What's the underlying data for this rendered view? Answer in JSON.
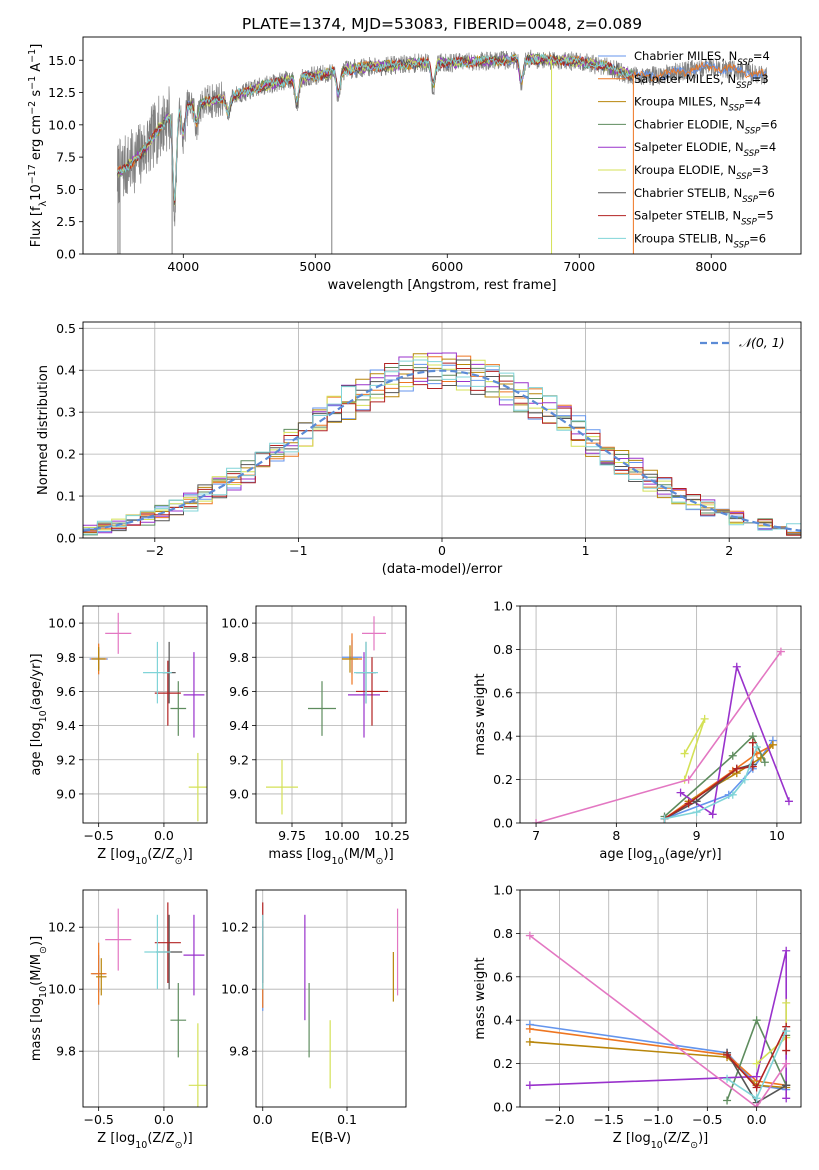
{
  "figure": {
    "title": "PLATE=1374, MJD=53083, FIBERID=0048, z=0.089",
    "background": "#ffffff",
    "grid_color": "#b0b0b0"
  },
  "models": [
    {
      "name": "Chabrier MILES",
      "nssp": "4",
      "color": "#6495ed"
    },
    {
      "name": "Salpeter MILES",
      "nssp": "3",
      "color": "#ee7621"
    },
    {
      "name": "Kroupa MILES",
      "nssp": "4",
      "color": "#b8860b"
    },
    {
      "name": "Chabrier ELODIE",
      "nssp": "6",
      "color": "#5e8c5e"
    },
    {
      "name": "Salpeter ELODIE",
      "nssp": "4",
      "color": "#9932cc"
    },
    {
      "name": "Kroupa ELODIE",
      "nssp": "3",
      "color": "#d4e157"
    },
    {
      "name": "Chabrier STELIB",
      "nssp": "6",
      "color": "#555555"
    },
    {
      "name": "Salpeter STELIB",
      "nssp": "5",
      "color": "#b22222"
    },
    {
      "name": "Kroupa STELIB",
      "nssp": "6",
      "color": "#80d4d8"
    }
  ],
  "chart_data": [
    {
      "id": "spectrum",
      "type": "line",
      "xlabel": "wavelength [Angstrom, rest frame]",
      "ylabel": "Flux [f_λ10^-17 erg cm^-2 s^-1 A^-1]",
      "xlim": [
        3240,
        8680
      ],
      "ylim": [
        0,
        16.8
      ],
      "xticks": [
        4000,
        5000,
        6000,
        7000,
        8000
      ],
      "yticks": [
        0.0,
        2.5,
        5.0,
        7.5,
        10.0,
        12.5,
        15.0
      ],
      "grid": false,
      "legend_position": "right",
      "data_color": "#808080",
      "continuum": [
        {
          "x": 3500,
          "y": 6.2
        },
        {
          "x": 3600,
          "y": 7.0
        },
        {
          "x": 3700,
          "y": 8.0
        },
        {
          "x": 3800,
          "y": 9.5
        },
        {
          "x": 3900,
          "y": 10.8
        },
        {
          "x": 4000,
          "y": 11.5
        },
        {
          "x": 4200,
          "y": 11.8
        },
        {
          "x": 4400,
          "y": 12.3
        },
        {
          "x": 4600,
          "y": 13.0
        },
        {
          "x": 4800,
          "y": 13.5
        },
        {
          "x": 5000,
          "y": 13.8
        },
        {
          "x": 5200,
          "y": 14.2
        },
        {
          "x": 5400,
          "y": 14.5
        },
        {
          "x": 5600,
          "y": 14.6
        },
        {
          "x": 5800,
          "y": 14.8
        },
        {
          "x": 6000,
          "y": 14.8
        },
        {
          "x": 6200,
          "y": 14.9
        },
        {
          "x": 6400,
          "y": 15.0
        },
        {
          "x": 6600,
          "y": 15.1
        },
        {
          "x": 6800,
          "y": 15.0
        },
        {
          "x": 7000,
          "y": 14.9
        },
        {
          "x": 7200,
          "y": 14.5
        },
        {
          "x": 7400,
          "y": 13.8
        },
        {
          "x": 7600,
          "y": 13.8
        },
        {
          "x": 7800,
          "y": 14.2
        },
        {
          "x": 8000,
          "y": 14.5
        },
        {
          "x": 8200,
          "y": 14.2
        },
        {
          "x": 8420,
          "y": 13.8
        }
      ],
      "absorption_dips": [
        {
          "x": 3934,
          "y": 3.4
        },
        {
          "x": 4000,
          "y": 9.0
        },
        {
          "x": 4100,
          "y": 10.0
        },
        {
          "x": 4340,
          "y": 10.8
        },
        {
          "x": 4861,
          "y": 11.5
        },
        {
          "x": 5175,
          "y": 12.2
        },
        {
          "x": 5893,
          "y": 12.8
        },
        {
          "x": 6563,
          "y": 13.2
        }
      ],
      "spikes": [
        {
          "x": 3505,
          "y": 0.0
        },
        {
          "x": 3520,
          "y": 0.0
        },
        {
          "x": 3915,
          "y": 0.0
        },
        {
          "x": 5125,
          "y": 0.0
        },
        {
          "x": 6790,
          "y": 0.0
        },
        {
          "x": 7410,
          "y": 0.0
        }
      ]
    },
    {
      "id": "residuals",
      "type": "step",
      "xlabel": "(data-model)/error",
      "ylabel": "Normed distribution",
      "xlim": [
        -2.5,
        2.5
      ],
      "ylim": [
        0,
        0.515
      ],
      "xticks": [
        -2,
        -1,
        0,
        1,
        2
      ],
      "yticks": [
        0.0,
        0.1,
        0.2,
        0.3,
        0.4,
        0.5
      ],
      "grid": true,
      "legend": "𝒩(0, 1)",
      "legend_position": "top-right",
      "bin_width": 0.1,
      "curve_color": "#5b8bd6"
    },
    {
      "id": "z-age",
      "type": "errorbar",
      "xlabel": "Z [log10(Z/Z⊙)]",
      "ylabel": "age  [log10(age/yr)]",
      "xlim": [
        -0.62,
        0.33
      ],
      "ylim": [
        8.83,
        10.1
      ],
      "xticks": [
        -0.5,
        0.0
      ],
      "yticks": [
        9.0,
        9.2,
        9.4,
        9.6,
        9.8,
        10.0
      ],
      "grid": true,
      "points": [
        {
          "series": 0,
          "x": -0.5,
          "y": 9.79,
          "ex": 0.07,
          "ey": 0.06
        },
        {
          "series": 1,
          "x": -0.5,
          "y": 9.79,
          "ex": 0.06,
          "ey": 0.09
        },
        {
          "series": 2,
          "x": -0.5,
          "y": 9.79,
          "ex": 0.05,
          "ey": 0.07
        },
        {
          "series": 3,
          "x": 0.11,
          "y": 9.5,
          "ex": 0.06,
          "ey": 0.16
        },
        {
          "series": 4,
          "x": 0.23,
          "y": 9.58,
          "ex": 0.08,
          "ey": 0.25
        },
        {
          "series": 5,
          "x": 0.26,
          "y": 9.04,
          "ex": 0.07,
          "ey": 0.2
        },
        {
          "series": 6,
          "x": 0.04,
          "y": 9.71,
          "ex": 0.05,
          "ey": 0.18
        },
        {
          "series": 7,
          "x": 0.03,
          "y": 9.59,
          "ex": 0.1,
          "ey": 0.19
        },
        {
          "series": 8,
          "x": -0.05,
          "y": 9.71,
          "ex": 0.11,
          "ey": 0.18
        },
        {
          "series": 9,
          "x": -0.35,
          "y": 9.94,
          "ex": 0.1,
          "ey": 0.12
        }
      ]
    },
    {
      "id": "mass-age",
      "type": "errorbar",
      "xlabel": "mass [log10(M/M⊙)]",
      "ylabel": "",
      "xlim": [
        9.57,
        10.32
      ],
      "ylim": [
        8.83,
        10.1
      ],
      "xticks": [
        9.75,
        10.0,
        10.25
      ],
      "yticks": [
        9.0,
        9.2,
        9.4,
        9.6,
        9.8,
        10.0
      ],
      "grid": true,
      "points": [
        {
          "series": 0,
          "x": 10.05,
          "y": 9.8,
          "ex": 0.05,
          "ey": 0.1
        },
        {
          "series": 1,
          "x": 10.05,
          "y": 9.79,
          "ex": 0.05,
          "ey": 0.15
        },
        {
          "series": 2,
          "x": 10.04,
          "y": 9.79,
          "ex": 0.04,
          "ey": 0.08
        },
        {
          "series": 3,
          "x": 9.9,
          "y": 9.5,
          "ex": 0.07,
          "ey": 0.16
        },
        {
          "series": 4,
          "x": 10.11,
          "y": 9.58,
          "ex": 0.08,
          "ey": 0.25
        },
        {
          "series": 5,
          "x": 9.7,
          "y": 9.04,
          "ex": 0.08,
          "ey": 0.16
        },
        {
          "series": 6,
          "x": 10.12,
          "y": 9.71,
          "ex": 0.05,
          "ey": 0.18
        },
        {
          "series": 7,
          "x": 10.15,
          "y": 9.6,
          "ex": 0.08,
          "ey": 0.2
        },
        {
          "series": 8,
          "x": 10.12,
          "y": 9.71,
          "ex": 0.06,
          "ey": 0.18
        },
        {
          "series": 9,
          "x": 10.16,
          "y": 9.94,
          "ex": 0.06,
          "ey": 0.1
        }
      ]
    },
    {
      "id": "age-weight",
      "type": "line",
      "xlabel": "age  [log10(age/yr)]",
      "ylabel": "mass weight",
      "xlim": [
        6.8,
        10.3
      ],
      "ylim": [
        0,
        1.0
      ],
      "xticks": [
        7,
        8,
        9,
        10
      ],
      "yticks": [
        0.0,
        0.2,
        0.4,
        0.6,
        0.8,
        1.0
      ],
      "grid": true,
      "series": [
        {
          "series": 0,
          "x": [
            8.6,
            9.4,
            9.7,
            9.95
          ],
          "y": [
            0.02,
            0.13,
            0.25,
            0.38
          ]
        },
        {
          "series": 1,
          "x": [
            8.6,
            9.45,
            9.75,
            9.95
          ],
          "y": [
            0.02,
            0.24,
            0.32,
            0.36
          ]
        },
        {
          "series": 2,
          "x": [
            8.9,
            9.5,
            9.8,
            9.95
          ],
          "y": [
            0.1,
            0.23,
            0.3,
            0.36
          ]
        },
        {
          "series": 3,
          "x": [
            8.6,
            9.45,
            9.7,
            9.85
          ],
          "y": [
            0.03,
            0.31,
            0.4,
            0.28
          ]
        },
        {
          "series": 4,
          "x": [
            8.8,
            9.2,
            9.5,
            10.15
          ],
          "y": [
            0.14,
            0.04,
            0.72,
            0.1
          ]
        },
        {
          "series": 5,
          "x": [
            8.85,
            9.1,
            8.85
          ],
          "y": [
            0.2,
            0.48,
            0.32
          ]
        },
        {
          "series": 6,
          "x": [
            8.6,
            9.0,
            9.5,
            9.7
          ],
          "y": [
            0.02,
            0.1,
            0.25,
            0.27
          ]
        },
        {
          "series": 7,
          "x": [
            8.6,
            8.9,
            9.5,
            9.7,
            9.7
          ],
          "y": [
            0.02,
            0.09,
            0.25,
            0.26,
            0.37
          ]
        },
        {
          "series": 8,
          "x": [
            8.6,
            9.0,
            9.45,
            9.6,
            9.75
          ],
          "y": [
            0.02,
            0.05,
            0.13,
            0.2,
            0.35
          ]
        },
        {
          "series": 9,
          "x": [
            7.0,
            8.9,
            10.05
          ],
          "y": [
            0.0,
            0.2,
            0.79
          ]
        }
      ]
    },
    {
      "id": "z-mass",
      "type": "errorbar",
      "xlabel": "Z [log10(Z/Z⊙)]",
      "ylabel": "mass [log10(M/M⊙)]",
      "xlim": [
        -0.62,
        0.33
      ],
      "ylim": [
        9.62,
        10.32
      ],
      "xticks": [
        -0.5,
        0.0
      ],
      "yticks": [
        9.8,
        10.0,
        10.2
      ],
      "grid": true,
      "points": [
        {
          "series": 0,
          "x": -0.5,
          "y": 10.05,
          "ex": 0.05,
          "ey": 0.06
        },
        {
          "series": 1,
          "x": -0.5,
          "y": 10.05,
          "ex": 0.06,
          "ey": 0.1
        },
        {
          "series": 2,
          "x": -0.48,
          "y": 10.04,
          "ex": 0.04,
          "ey": 0.06
        },
        {
          "series": 3,
          "x": 0.11,
          "y": 9.9,
          "ex": 0.06,
          "ey": 0.12
        },
        {
          "series": 4,
          "x": 0.23,
          "y": 10.11,
          "ex": 0.08,
          "ey": 0.13
        },
        {
          "series": 5,
          "x": 0.26,
          "y": 9.69,
          "ex": 0.07,
          "ey": 0.2
        },
        {
          "series": 6,
          "x": 0.04,
          "y": 10.12,
          "ex": 0.1,
          "ey": 0.12
        },
        {
          "series": 7,
          "x": 0.03,
          "y": 10.15,
          "ex": 0.1,
          "ey": 0.13
        },
        {
          "series": 8,
          "x": -0.05,
          "y": 10.12,
          "ex": 0.1,
          "ey": 0.12
        },
        {
          "series": 9,
          "x": -0.35,
          "y": 10.16,
          "ex": 0.1,
          "ey": 0.1
        }
      ]
    },
    {
      "id": "ebv-mass",
      "type": "errorbar",
      "xlabel": "E(B-V)",
      "ylabel": "",
      "xlim": [
        -0.008,
        0.17
      ],
      "ylim": [
        9.62,
        10.32
      ],
      "xticks": [
        0.0,
        0.1
      ],
      "yticks": [
        9.8,
        10.0,
        10.2
      ],
      "grid": true,
      "points": [
        {
          "series": 0,
          "x": 0.0,
          "y": 10.05,
          "ex": 0.0,
          "ey": 0.12
        },
        {
          "series": 1,
          "x": 0.0,
          "y": 10.04,
          "ex": 0.0,
          "ey": 0.1
        },
        {
          "series": 2,
          "x": 0.155,
          "y": 10.04,
          "ex": 0.0,
          "ey": 0.08
        },
        {
          "series": 3,
          "x": 0.055,
          "y": 9.9,
          "ex": 0.0,
          "ey": 0.12
        },
        {
          "series": 4,
          "x": 0.05,
          "y": 10.07,
          "ex": 0.0,
          "ey": 0.17
        },
        {
          "series": 5,
          "x": 0.08,
          "y": 9.79,
          "ex": 0.0,
          "ey": 0.11
        },
        {
          "series": 6,
          "x": 0.0,
          "y": 10.12,
          "ex": 0.0,
          "ey": 0.1
        },
        {
          "series": 7,
          "x": 0.0,
          "y": 10.15,
          "ex": 0.0,
          "ey": 0.13
        },
        {
          "series": 8,
          "x": 0.0,
          "y": 10.12,
          "ex": 0.0,
          "ey": 0.12
        },
        {
          "series": 9,
          "x": 0.16,
          "y": 10.12,
          "ex": 0.0,
          "ey": 0.14
        }
      ]
    },
    {
      "id": "z-weight",
      "type": "line",
      "xlabel": "Z [log10(Z/Z⊙)]",
      "ylabel": "mass weight",
      "xlim": [
        -2.4,
        0.45
      ],
      "ylim": [
        0,
        1.0
      ],
      "xticks": [
        -2.0,
        -1.5,
        -1.0,
        -0.5,
        0.0
      ],
      "yticks": [
        0.0,
        0.2,
        0.4,
        0.6,
        0.8,
        1.0
      ],
      "grid": true,
      "series": [
        {
          "series": 0,
          "x": [
            -2.3,
            -0.3,
            0.0,
            0.3
          ],
          "y": [
            0.38,
            0.25,
            0.1,
            0.08
          ]
        },
        {
          "series": 1,
          "x": [
            -2.3,
            -0.3,
            0.0,
            0.3
          ],
          "y": [
            0.36,
            0.24,
            0.12,
            0.1
          ]
        },
        {
          "series": 2,
          "x": [
            -2.3,
            -0.3,
            0.0,
            0.3
          ],
          "y": [
            0.3,
            0.23,
            0.1,
            0.09
          ]
        },
        {
          "series": 3,
          "x": [
            -0.3,
            0.0,
            0.3,
            0.3
          ],
          "y": [
            0.03,
            0.4,
            0.1,
            0.33
          ]
        },
        {
          "series": 4,
          "x": [
            -2.3,
            0.0,
            0.3,
            0.3
          ],
          "y": [
            0.1,
            0.14,
            0.72,
            0.04
          ]
        },
        {
          "series": 5,
          "x": [
            0.0,
            0.3,
            0.3
          ],
          "y": [
            0.2,
            0.32,
            0.48
          ]
        },
        {
          "series": 6,
          "x": [
            -0.3,
            0.0,
            0.3
          ],
          "y": [
            0.25,
            0.02,
            0.1
          ]
        },
        {
          "series": 7,
          "x": [
            -0.3,
            0.0,
            0.3,
            0.3
          ],
          "y": [
            0.24,
            0.09,
            0.37,
            0.26
          ]
        },
        {
          "series": 8,
          "x": [
            -0.3,
            0.0,
            0.3
          ],
          "y": [
            0.13,
            0.04,
            0.35
          ]
        },
        {
          "series": 9,
          "x": [
            -2.3,
            0.0,
            0.3
          ],
          "y": [
            0.79,
            0.0,
            0.2
          ]
        }
      ]
    }
  ]
}
